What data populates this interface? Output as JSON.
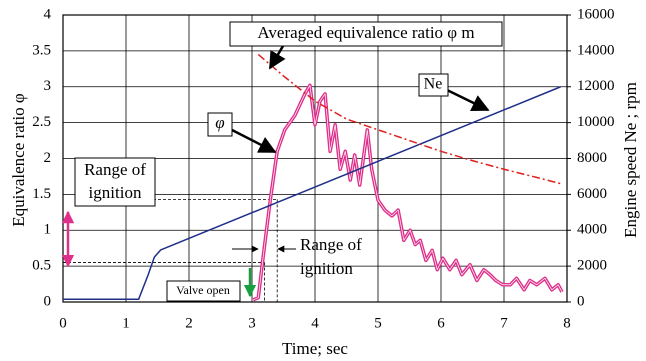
{
  "chart_data": {
    "type": "line",
    "xlabel": "Time; sec",
    "ylabel": "Equivalence ratio φ",
    "y2label": "Engine speed Ne ; rpm",
    "xlim": [
      0,
      8
    ],
    "xticks": [
      0,
      1,
      2,
      3,
      4,
      5,
      6,
      7,
      8
    ],
    "ylim": [
      0,
      4
    ],
    "yticks": [
      0,
      0.5,
      1,
      1.5,
      2,
      2.5,
      3,
      3.5,
      4
    ],
    "y2lim": [
      0,
      16000
    ],
    "y2ticks": [
      0,
      2000,
      4000,
      6000,
      8000,
      10000,
      12000,
      14000,
      16000
    ],
    "grid": true,
    "series": [
      {
        "name": "φ",
        "color": "#e0308c",
        "x": [
          3.02,
          3.1,
          3.17,
          3.29,
          3.4,
          3.52,
          3.68,
          3.84,
          3.92,
          4.0,
          4.08,
          4.16,
          4.24,
          4.32,
          4.4,
          4.48,
          4.56,
          4.63,
          4.71,
          4.83,
          4.9,
          5.0,
          5.11,
          5.22,
          5.32,
          5.41,
          5.51,
          5.59,
          5.67,
          5.76,
          5.86,
          5.94,
          6.03,
          6.14,
          6.24,
          6.33,
          6.46,
          6.57,
          6.68,
          6.78,
          6.87,
          6.98,
          7.1,
          7.2,
          7.32,
          7.41,
          7.52,
          7.65,
          7.76,
          7.86,
          7.92
        ],
        "values": [
          0.03,
          0.06,
          0.58,
          1.42,
          2.1,
          2.4,
          2.6,
          2.9,
          3.02,
          2.47,
          2.8,
          2.9,
          2.1,
          2.47,
          1.85,
          2.1,
          1.7,
          2.05,
          1.63,
          2.4,
          1.85,
          1.42,
          1.28,
          1.2,
          1.28,
          0.86,
          1.0,
          0.8,
          0.86,
          0.58,
          0.72,
          0.45,
          0.61,
          0.45,
          0.58,
          0.38,
          0.52,
          0.3,
          0.45,
          0.38,
          0.3,
          0.24,
          0.24,
          0.33,
          0.17,
          0.3,
          0.24,
          0.33,
          0.17,
          0.24,
          0.14
        ]
      },
      {
        "name": "Ne",
        "color": "#1f2f8a",
        "axis": "y2",
        "x": [
          0,
          1.2,
          1.35,
          1.45,
          1.55,
          7.9
        ],
        "values": [
          150,
          150,
          1500,
          2500,
          2900,
          12000
        ]
      },
      {
        "name": "Averaged equivalence ratio φ m",
        "color": "#e02020",
        "dash": "8,3,2,3",
        "x": [
          3.1,
          3.5,
          4.0,
          4.5,
          5.0,
          5.5,
          6.0,
          6.5,
          7.0,
          7.5,
          7.9
        ],
        "values": [
          3.45,
          3.15,
          2.8,
          2.55,
          2.4,
          2.25,
          2.1,
          1.97,
          1.85,
          1.74,
          1.65
        ]
      }
    ],
    "ignition_range": {
      "phi": [
        0.55,
        1.43
      ],
      "time": [
        3.2,
        3.4
      ]
    },
    "annotations": {
      "range_left": [
        "Range of",
        "ignition"
      ],
      "range_right": [
        "Range of",
        "ignition"
      ],
      "valve": "Valve open"
    }
  }
}
